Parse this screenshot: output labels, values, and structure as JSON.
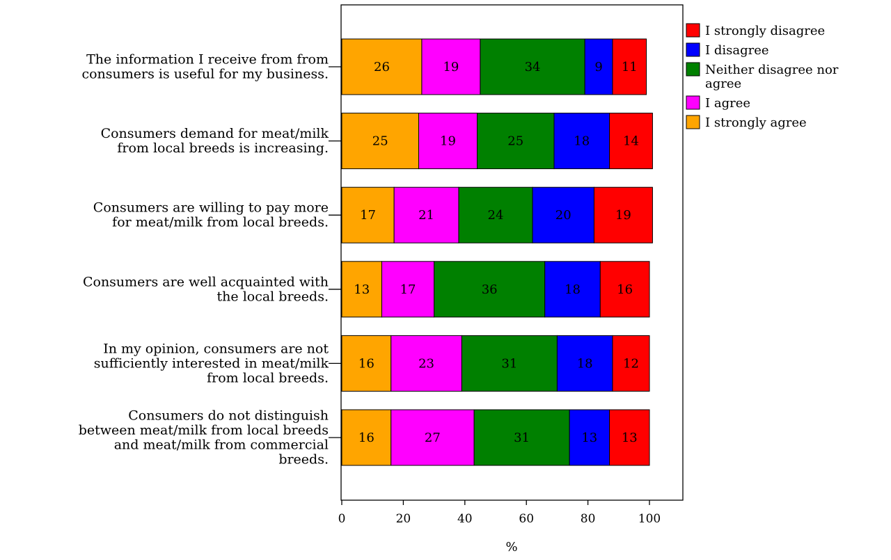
{
  "chart_data": {
    "type": "bar",
    "orientation": "horizontal",
    "stacked": true,
    "categories": [
      "The information I receive from from consumers is useful for my business.",
      "Consumers demand for meat/milk from local breeds is increasing.",
      "Consumers are willing to pay more for meat/milk from local breeds.",
      "Consumers are well acquainted with the local breeds.",
      "In my opinion, consumers are not sufficiently interested in meat/milk from local breeds.",
      "Consumers do not distinguish between meat/milk from local breeds and meat/milk from commercial breeds."
    ],
    "category_lines": [
      [
        "The information I receive from from",
        "consumers is useful for my business."
      ],
      [
        "Consumers demand for meat/milk",
        "from local breeds is increasing."
      ],
      [
        "Consumers are willing to pay more",
        "for meat/milk from local breeds."
      ],
      [
        "Consumers are well acquainted with",
        "the local breeds."
      ],
      [
        "In my opinion, consumers are not",
        "sufficiently interested in meat/milk",
        "from local breeds."
      ],
      [
        "Consumers do not distinguish",
        "between meat/milk from local breeds",
        "and meat/milk from commercial",
        "breeds."
      ]
    ],
    "series": [
      {
        "name": "I strongly agree",
        "color": "#FFA500",
        "values": [
          26,
          25,
          17,
          13,
          16,
          16
        ]
      },
      {
        "name": "I agree",
        "color": "#FF00FF",
        "values": [
          19,
          19,
          21,
          17,
          23,
          27
        ]
      },
      {
        "name": "Neither disagree nor agree",
        "color": "#008000",
        "values": [
          34,
          25,
          24,
          36,
          31,
          31
        ]
      },
      {
        "name": "I disagree",
        "color": "#0000FF",
        "values": [
          9,
          18,
          20,
          18,
          18,
          13
        ]
      },
      {
        "name": "I strongly disagree",
        "color": "#FF0000",
        "values": [
          11,
          14,
          19,
          16,
          12,
          13
        ]
      }
    ],
    "legend_order": [
      "I strongly disagree",
      "I disagree",
      "Neither disagree nor agree",
      "I agree",
      "I strongly agree"
    ],
    "legend_lines": {
      "I strongly disagree": [
        "I strongly disagree"
      ],
      "I disagree": [
        "I disagree"
      ],
      "Neither disagree nor agree": [
        "Neither disagree nor",
        "agree"
      ],
      "I agree": [
        "I agree"
      ],
      "I strongly agree": [
        "I strongly agree"
      ]
    },
    "xlim": [
      0,
      100
    ],
    "xticks": [
      0,
      20,
      40,
      60,
      80,
      100
    ],
    "xlabel": "%",
    "legend_position": "top-right",
    "grid": false
  }
}
